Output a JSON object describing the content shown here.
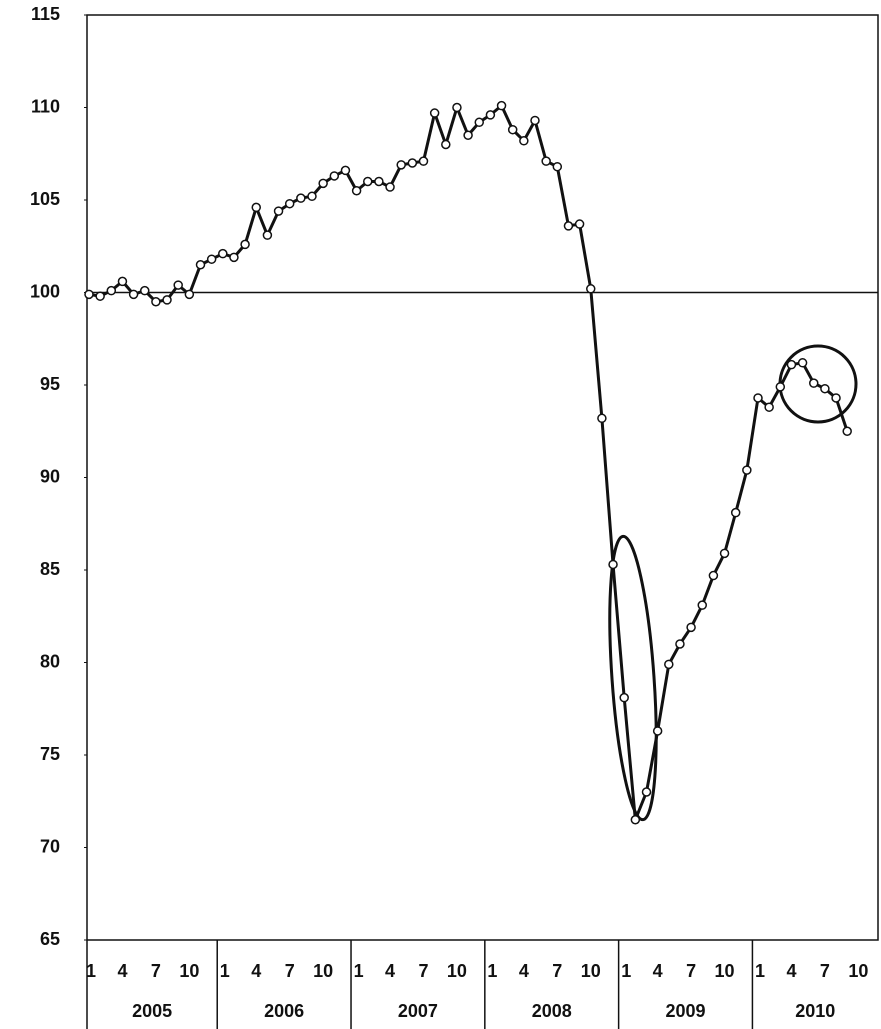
{
  "chart_data": {
    "type": "line",
    "years": [
      "2005",
      "2006",
      "2007",
      "2008",
      "2009",
      "2010"
    ],
    "month_labels": [
      1,
      4,
      7,
      10
    ],
    "values": [
      99.9,
      99.8,
      100.1,
      100.6,
      99.9,
      100.1,
      99.5,
      99.6,
      100.4,
      99.9,
      101.5,
      101.8,
      102.1,
      101.9,
      102.6,
      104.6,
      103.1,
      104.4,
      104.8,
      105.1,
      105.2,
      105.9,
      106.3,
      106.6,
      105.5,
      106.0,
      106.0,
      105.7,
      106.9,
      107.0,
      107.1,
      109.7,
      108.0,
      110.0,
      108.5,
      109.2,
      109.6,
      110.1,
      108.8,
      108.2,
      109.3,
      107.1,
      106.8,
      103.6,
      103.7,
      100.2,
      93.2,
      85.3,
      78.1,
      71.5,
      73.0,
      76.3,
      79.9,
      81.0,
      81.9,
      83.1,
      84.7,
      85.9,
      88.1,
      90.4,
      94.3,
      93.8,
      94.9,
      96.1,
      96.2,
      95.1,
      94.8,
      94.3,
      92.5
    ],
    "color": "#111111",
    "ylim": [
      65,
      115
    ],
    "yticks": [
      65,
      70,
      75,
      80,
      85,
      90,
      95,
      100,
      105,
      110,
      115
    ],
    "reference_line": 100
  }
}
